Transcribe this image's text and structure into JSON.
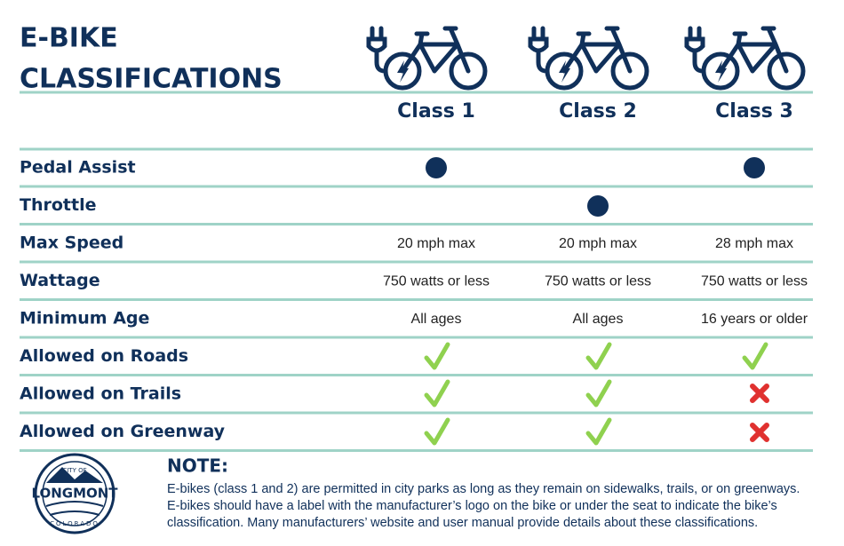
{
  "header": {
    "title_lines": [
      "E-BIKE",
      "CLASSIFICATIONS"
    ],
    "columns": [
      "Class 1",
      "Class 2",
      "Class 3"
    ]
  },
  "table": {
    "rows": [
      [
        "Pedal Assist",
        null,
        null,
        null
      ],
      [
        "Throttle",
        null,
        null,
        null
      ],
      [
        "Max Speed",
        "20 mph max",
        "20 mph max",
        "28 mph max"
      ],
      [
        "Wattage",
        "750 watts or less",
        "750 watts or less",
        "750 watts or less"
      ],
      [
        "Minimum Age",
        "All ages",
        "All ages",
        "16 years or older"
      ],
      [
        "Allowed on Roads",
        null,
        null,
        null
      ],
      [
        "Allowed on Trails",
        null,
        null,
        null
      ],
      [
        "Allowed on Greenway",
        null,
        null,
        null
      ]
    ]
  },
  "logo": {
    "top": "CITY OF",
    "name": "LONGMONT",
    "bottom": "COLORADO"
  },
  "note": {
    "title": "NOTE:",
    "lines": [
      "E-bikes (class 1 and 2) are permitted in city parks as long as they remain on sidewalks, trails, or on greenways.",
      "E-bikes should have a label with the manufacturer’s logo on the bike or under the seat to indicate the bike’s",
      "classification. Many manufacturers’ website and user manual provide details about these classifications."
    ]
  }
}
